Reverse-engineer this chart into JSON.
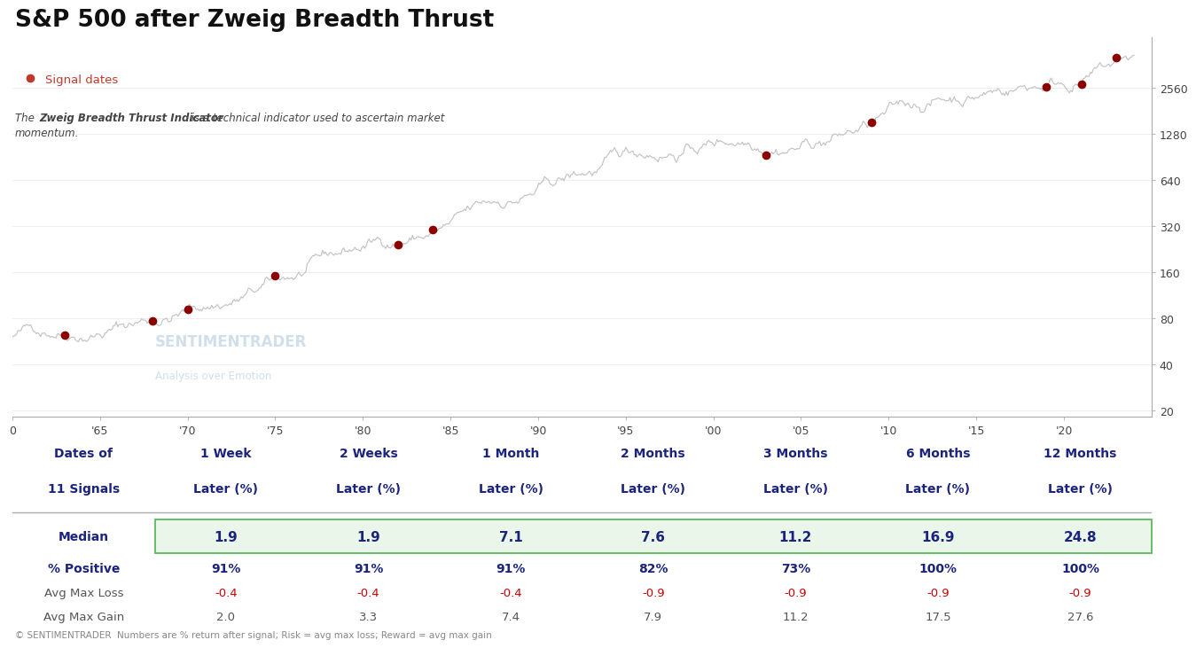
{
  "title": "S&P 500 after Zweig Breadth Thrust",
  "legend_label": "Signal dates",
  "watermark_line1": "SENTIMENTRADER",
  "watermark_line2": "Analysis over Emotion",
  "footer": "© SENTIMENTRADER  Numbers are % return after signal; Risk = avg max loss; Reward = avg max gain",
  "yticks": [
    20,
    40,
    80,
    160,
    320,
    640,
    1280,
    2560
  ],
  "xtick_labels": [
    "0",
    "'65",
    "'70",
    "'75",
    "'80",
    "'85",
    "'90",
    "'95",
    "'00",
    "'05",
    "'10",
    "'15",
    "'20"
  ],
  "signal_years": [
    1963,
    1968,
    1970,
    1975,
    1982,
    1984,
    2003,
    2009,
    2019,
    2021,
    2023
  ],
  "table_col_headers_line1": [
    "Dates of",
    "1 Week",
    "2 Weeks",
    "1 Month",
    "2 Months",
    "3 Months",
    "6 Months",
    "12 Months"
  ],
  "table_col_headers_line2": [
    "11 Signals",
    "Later (%)",
    "Later (%)",
    "Later (%)",
    "Later (%)",
    "Later (%)",
    "Later (%)",
    "Later (%)"
  ],
  "row_labels": [
    "Median",
    "% Positive",
    "Avg Max Loss",
    "Avg Max Gain"
  ],
  "median_vals": [
    "1.9",
    "1.9",
    "7.1",
    "7.6",
    "11.2",
    "16.9",
    "24.8"
  ],
  "pct_pos_vals": [
    "91%",
    "91%",
    "91%",
    "82%",
    "73%",
    "100%",
    "100%"
  ],
  "avg_loss_vals": [
    "-0.4",
    "-0.4",
    "-0.4",
    "-0.9",
    "-0.9",
    "-0.9",
    "-0.9"
  ],
  "avg_gain_vals": [
    "2.0",
    "3.3",
    "7.4",
    "7.9",
    "11.2",
    "17.5",
    "27.6"
  ],
  "line_color": "#c0c0c0",
  "signal_dot_color": "#8b0000",
  "signal_legend_color": "#c0392b",
  "median_bg_color": "#eaf6ea",
  "median_border_color": "#5cb85c",
  "red_text_color": "#cc0000",
  "blue_text_color": "#1a237e",
  "gray_text_color": "#555555",
  "watermark_color": "#b8cfe0"
}
